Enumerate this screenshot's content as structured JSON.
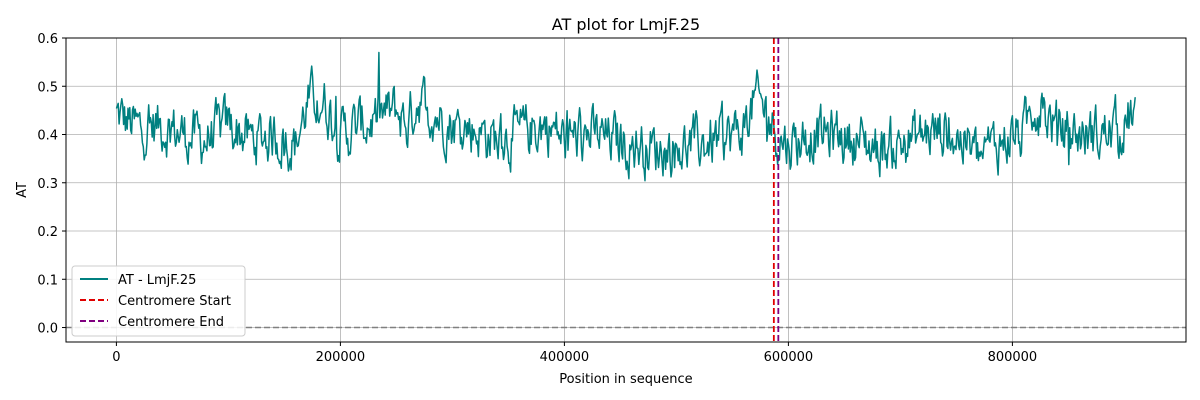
{
  "chart_data": {
    "type": "line",
    "title": "AT plot for LmjF.25",
    "xlabel": "Position in sequence",
    "ylabel": "AT",
    "xlim": [
      -45000,
      955000
    ],
    "ylim": [
      -0.03,
      0.6
    ],
    "xticks": [
      0,
      200000,
      400000,
      600000,
      800000
    ],
    "xtick_labels": [
      "0",
      "200000",
      "400000",
      "600000",
      "800000"
    ],
    "yticks": [
      0.0,
      0.1,
      0.2,
      0.3,
      0.4,
      0.5,
      0.6
    ],
    "ytick_labels": [
      "0.0",
      "0.1",
      "0.2",
      "0.3",
      "0.4",
      "0.5",
      "0.6"
    ],
    "grid": true,
    "legend_position": "lower-left",
    "series": [
      {
        "name": "AT - LmjF.25",
        "color": "#008080",
        "x": [
          0,
          20000,
          40000,
          60000,
          80000,
          100000,
          120000,
          140000,
          160000,
          170000,
          180000,
          190000,
          200000,
          220000,
          240000,
          250000,
          260000,
          270000,
          280000,
          300000,
          320000,
          340000,
          360000,
          380000,
          390000,
          400000,
          420000,
          440000,
          460000,
          480000,
          500000,
          520000,
          540000,
          560000,
          570000,
          580000,
          590000,
          600000,
          620000,
          640000,
          660000,
          680000,
          700000,
          720000,
          740000,
          760000,
          770000,
          780000,
          800000,
          810000,
          820000,
          830000,
          840000,
          860000,
          880000,
          900000,
          910000
        ],
        "y": [
          0.44,
          0.41,
          0.42,
          0.4,
          0.39,
          0.42,
          0.39,
          0.4,
          0.38,
          0.46,
          0.48,
          0.45,
          0.4,
          0.42,
          0.44,
          0.45,
          0.42,
          0.48,
          0.45,
          0.42,
          0.41,
          0.39,
          0.4,
          0.42,
          0.41,
          0.39,
          0.4,
          0.39,
          0.38,
          0.37,
          0.37,
          0.38,
          0.39,
          0.41,
          0.47,
          0.45,
          0.4,
          0.38,
          0.4,
          0.4,
          0.39,
          0.37,
          0.38,
          0.4,
          0.41,
          0.38,
          0.35,
          0.37,
          0.4,
          0.4,
          0.47,
          0.44,
          0.41,
          0.4,
          0.4,
          0.42,
          0.45
        ]
      },
      {
        "name": "Centromere Start",
        "color": "#e00000",
        "x_value": 587000,
        "style": "dashed"
      },
      {
        "name": "Centromere End",
        "color": "#800080",
        "x_value": 591000,
        "style": "dashed"
      }
    ],
    "reference_line": {
      "y_value": 0.0,
      "color": "#808080",
      "style": "dashed"
    }
  }
}
